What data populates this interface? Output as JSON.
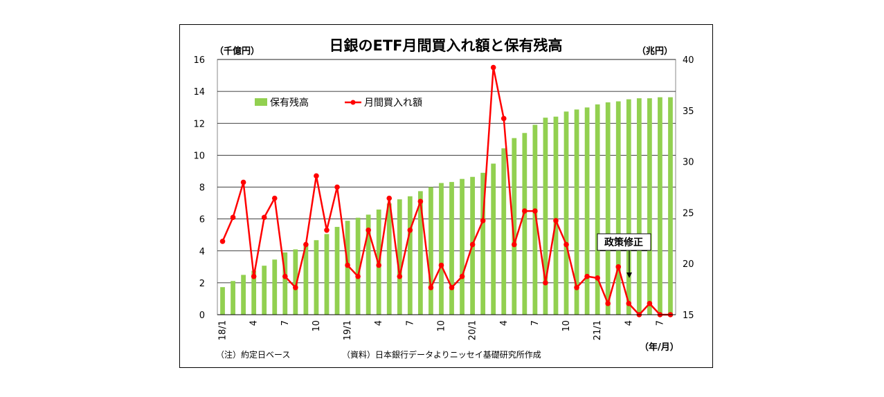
{
  "colors": {
    "bar": "#92D050",
    "line": "#FF0000",
    "grid": "#000000"
  },
  "chart_data": {
    "type": "bar+line",
    "title": "日銀のETF月間買入れ額と保有残高",
    "left_axis_unit": "（千億円）",
    "right_axis_unit": "（兆円）",
    "x_axis_unit": "（年/月）",
    "left_ylim": [
      0,
      16
    ],
    "left_yticks": [
      "0",
      "2",
      "4",
      "6",
      "8",
      "10",
      "12",
      "14",
      "16"
    ],
    "right_ylim": [
      15,
      40
    ],
    "right_yticks": [
      "15",
      "20",
      "25",
      "30",
      "35",
      "40"
    ],
    "x_ticks": [
      {
        "index": 0,
        "label": "18/1"
      },
      {
        "index": 3,
        "label": "4"
      },
      {
        "index": 6,
        "label": "7"
      },
      {
        "index": 9,
        "label": "10"
      },
      {
        "index": 12,
        "label": "19/1"
      },
      {
        "index": 15,
        "label": "4"
      },
      {
        "index": 18,
        "label": "7"
      },
      {
        "index": 21,
        "label": "10"
      },
      {
        "index": 24,
        "label": "20/1"
      },
      {
        "index": 27,
        "label": "4"
      },
      {
        "index": 30,
        "label": "7"
      },
      {
        "index": 33,
        "label": "10"
      },
      {
        "index": 36,
        "label": "21/1"
      },
      {
        "index": 39,
        "label": "4"
      },
      {
        "index": 42,
        "label": "7"
      }
    ],
    "categories": [
      "18/1",
      "18/2",
      "18/3",
      "18/4",
      "18/5",
      "18/6",
      "18/7",
      "18/8",
      "18/9",
      "18/10",
      "18/11",
      "18/12",
      "19/1",
      "19/2",
      "19/3",
      "19/4",
      "19/5",
      "19/6",
      "19/7",
      "19/8",
      "19/9",
      "19/10",
      "19/11",
      "19/12",
      "20/1",
      "20/2",
      "20/3",
      "20/4",
      "20/5",
      "20/6",
      "20/7",
      "20/8",
      "20/9",
      "20/10",
      "20/11",
      "20/12",
      "21/1",
      "21/2",
      "21/3",
      "21/4",
      "21/5",
      "21/6",
      "21/7",
      "21/8"
    ],
    "series": [
      {
        "name": "保有残高",
        "type": "bar",
        "axis": "right",
        "values": [
          17.7,
          18.3,
          18.9,
          19.3,
          19.8,
          20.4,
          21.1,
          21.4,
          21.9,
          22.3,
          22.9,
          23.6,
          24.2,
          24.5,
          24.8,
          25.3,
          25.9,
          26.3,
          26.6,
          27.1,
          27.5,
          27.9,
          28.0,
          28.3,
          28.5,
          28.9,
          29.8,
          31.3,
          32.3,
          32.8,
          33.6,
          34.3,
          34.4,
          34.9,
          35.1,
          35.3,
          35.6,
          35.8,
          35.9,
          36.1,
          36.2,
          36.2,
          36.3,
          36.3
        ]
      },
      {
        "name": "月間買入れ額",
        "type": "line",
        "axis": "left",
        "values": [
          4.6,
          6.1,
          8.3,
          2.4,
          6.1,
          7.3,
          2.4,
          1.7,
          4.4,
          8.7,
          5.3,
          8.0,
          3.1,
          2.4,
          5.3,
          3.1,
          7.3,
          2.4,
          5.3,
          7.1,
          1.7,
          3.1,
          1.7,
          2.4,
          4.4,
          5.9,
          15.5,
          12.3,
          4.4,
          6.5,
          6.5,
          2.0,
          5.9,
          4.4,
          1.7,
          2.4,
          2.3,
          0.7,
          3.0,
          0.7,
          0.0,
          0.7,
          0.0,
          0.0
        ]
      }
    ],
    "annotation": {
      "text": "政策修正",
      "index": 39
    },
    "notes": {
      "left": "（注）約定日ベース",
      "right": "（資料）日本銀行データよりニッセイ基礎研究所作成"
    }
  }
}
